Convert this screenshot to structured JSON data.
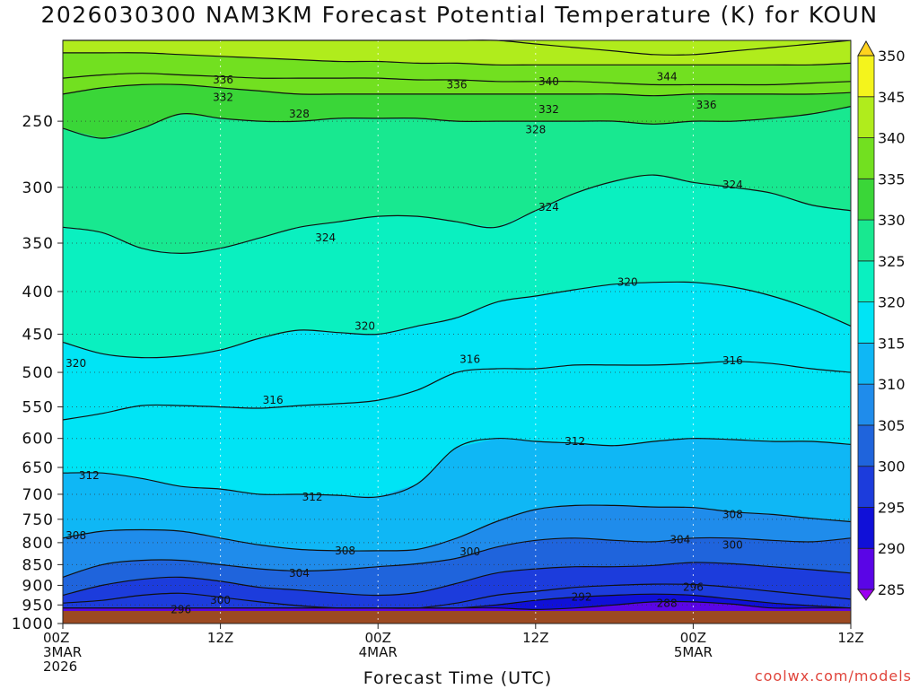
{
  "chart_data": {
    "type": "heatmap",
    "title": "2026030300 NAM3KM Forecast Potential Temperature (K) for KOUN",
    "xlabel": "Forecast Time (UTC)",
    "ylabel": "",
    "x_ticks": [
      {
        "hour": 0,
        "lines": [
          "00Z",
          "3MAR",
          "2026"
        ]
      },
      {
        "hour": 12,
        "lines": [
          "12Z"
        ]
      },
      {
        "hour": 24,
        "lines": [
          "00Z",
          "4MAR"
        ]
      },
      {
        "hour": 36,
        "lines": [
          "12Z"
        ]
      },
      {
        "hour": 48,
        "lines": [
          "00Z",
          "5MAR"
        ]
      },
      {
        "hour": 60,
        "lines": [
          "12Z"
        ]
      }
    ],
    "xlim": [
      0,
      60
    ],
    "y_axis": {
      "ticks": [
        250,
        300,
        350,
        400,
        450,
        500,
        550,
        600,
        650,
        700,
        750,
        800,
        850,
        900,
        950,
        1000
      ],
      "ylim": [
        200,
        1000
      ],
      "scale": "log",
      "inverted": true
    },
    "colorbar": {
      "ticks": [
        285,
        290,
        295,
        300,
        305,
        310,
        315,
        320,
        325,
        330,
        335,
        340,
        345,
        350
      ],
      "colors": [
        "#9b00f0",
        "#5a05e6",
        "#1010d8",
        "#1c3cdc",
        "#1f64dc",
        "#1f8ceb",
        "#0fb7f5",
        "#00e4f5",
        "#0af0c0",
        "#18e890",
        "#3ad638",
        "#72e020",
        "#b0ec1c",
        "#f4f41c",
        "#ffd21e"
      ]
    },
    "x_hours": [
      0,
      3,
      6,
      9,
      12,
      15,
      18,
      21,
      24,
      27,
      30,
      33,
      36,
      39,
      42,
      45,
      48,
      51,
      54,
      57,
      60
    ],
    "levels": [
      {
        "theta": 288,
        "p": [
          958,
          958,
          958,
          958,
          958,
          958,
          958,
          958,
          958,
          958,
          958,
          958,
          962,
          958,
          950,
          942,
          942,
          948,
          958,
          958,
          958
        ]
      },
      {
        "theta": 292,
        "p": [
          958,
          958,
          958,
          958,
          958,
          958,
          958,
          958,
          958,
          958,
          958,
          950,
          938,
          930,
          925,
          922,
          925,
          935,
          945,
          952,
          958
        ]
      },
      {
        "theta": 296,
        "p": [
          945,
          938,
          925,
          920,
          930,
          942,
          952,
          958,
          958,
          958,
          945,
          925,
          915,
          905,
          900,
          897,
          898,
          905,
          915,
          925,
          935
        ]
      },
      {
        "theta": 300,
        "p": [
          925,
          900,
          885,
          880,
          890,
          905,
          912,
          920,
          925,
          918,
          895,
          870,
          860,
          855,
          855,
          852,
          845,
          848,
          855,
          862,
          870
        ]
      },
      {
        "theta": 304,
        "p": [
          880,
          850,
          840,
          840,
          850,
          860,
          865,
          862,
          855,
          848,
          835,
          810,
          795,
          790,
          795,
          798,
          790,
          790,
          795,
          798,
          790
        ]
      },
      {
        "theta": 308,
        "p": [
          790,
          775,
          772,
          775,
          790,
          805,
          815,
          818,
          818,
          815,
          790,
          755,
          730,
          722,
          722,
          725,
          726,
          735,
          740,
          748,
          755
        ]
      },
      {
        "theta": 312,
        "p": [
          660,
          660,
          670,
          685,
          690,
          700,
          700,
          702,
          705,
          680,
          615,
          600,
          605,
          608,
          612,
          605,
          600,
          602,
          605,
          605,
          610
        ]
      },
      {
        "theta": 316,
        "p": [
          570,
          560,
          548,
          548,
          550,
          552,
          548,
          545,
          540,
          525,
          500,
          495,
          495,
          490,
          490,
          490,
          488,
          485,
          488,
          495,
          500
        ]
      },
      {
        "theta": 320,
        "p": [
          460,
          475,
          480,
          478,
          470,
          455,
          445,
          448,
          450,
          440,
          430,
          412,
          405,
          398,
          392,
          390,
          390,
          395,
          405,
          420,
          440
        ]
      },
      {
        "theta": 324,
        "p": [
          335,
          340,
          355,
          360,
          355,
          345,
          335,
          330,
          325,
          325,
          330,
          335,
          320,
          305,
          295,
          290,
          296,
          300,
          305,
          315,
          320
        ]
      },
      {
        "theta": 328,
        "p": [
          255,
          262,
          255,
          245,
          248,
          250,
          250,
          248,
          248,
          248,
          250,
          250,
          250,
          250,
          250,
          252,
          250,
          250,
          248,
          245,
          240
        ]
      },
      {
        "theta": 332,
        "p": [
          232,
          228,
          226,
          226,
          228,
          230,
          232,
          232,
          232,
          232,
          232,
          232,
          232,
          232,
          232,
          233,
          232,
          232,
          232,
          232,
          231
        ]
      },
      {
        "theta": 336,
        "p": [
          222,
          220,
          219,
          220,
          221,
          222,
          222,
          222,
          222,
          223,
          223,
          224,
          224,
          224,
          225,
          226,
          226,
          226,
          226,
          225,
          224
        ]
      },
      {
        "theta": 340,
        "p": [
          207,
          207,
          207,
          208,
          209,
          210,
          211,
          212,
          212,
          213,
          213,
          214,
          214,
          214,
          214,
          214,
          214,
          214,
          214,
          214,
          213
        ]
      },
      {
        "theta": 344,
        "p": [
          200,
          200,
          200,
          200,
          200,
          200,
          200,
          200,
          200,
          200,
          200,
          200,
          202,
          204,
          206,
          208,
          208,
          206,
          204,
          202,
          200
        ]
      }
    ],
    "contour_labels": [
      {
        "text": "336",
        "hour": 12.2,
        "p": 223
      },
      {
        "text": "332",
        "hour": 12.2,
        "p": 234
      },
      {
        "text": "328",
        "hour": 18.0,
        "p": 245
      },
      {
        "text": "336",
        "hour": 30.0,
        "p": 226
      },
      {
        "text": "340",
        "hour": 37.0,
        "p": 224
      },
      {
        "text": "344",
        "hour": 46.0,
        "p": 221
      },
      {
        "text": "332",
        "hour": 37.0,
        "p": 242
      },
      {
        "text": "336",
        "hour": 49.0,
        "p": 239
      },
      {
        "text": "328",
        "hour": 36.0,
        "p": 256
      },
      {
        "text": "324",
        "hour": 51.0,
        "p": 298
      },
      {
        "text": "324",
        "hour": 37.0,
        "p": 317
      },
      {
        "text": "324",
        "hour": 20.0,
        "p": 345
      },
      {
        "text": "320",
        "hour": 43.0,
        "p": 390
      },
      {
        "text": "320",
        "hour": 23.0,
        "p": 440
      },
      {
        "text": "320",
        "hour": 1.0,
        "p": 488
      },
      {
        "text": "316",
        "hour": 31.0,
        "p": 482
      },
      {
        "text": "316",
        "hour": 51.0,
        "p": 484
      },
      {
        "text": "316",
        "hour": 16.0,
        "p": 540
      },
      {
        "text": "312",
        "hour": 39.0,
        "p": 605
      },
      {
        "text": "312",
        "hour": 2.0,
        "p": 665
      },
      {
        "text": "312",
        "hour": 19.0,
        "p": 705
      },
      {
        "text": "308",
        "hour": 51.0,
        "p": 740
      },
      {
        "text": "308",
        "hour": 1.0,
        "p": 785
      },
      {
        "text": "308",
        "hour": 21.5,
        "p": 818
      },
      {
        "text": "304",
        "hour": 18.0,
        "p": 870
      },
      {
        "text": "304",
        "hour": 47.0,
        "p": 793
      },
      {
        "text": "300",
        "hour": 31.0,
        "p": 820
      },
      {
        "text": "300",
        "hour": 51.0,
        "p": 805
      },
      {
        "text": "300",
        "hour": 12.0,
        "p": 938
      },
      {
        "text": "296",
        "hour": 9.0,
        "p": 962
      },
      {
        "text": "296",
        "hour": 48.0,
        "p": 905
      },
      {
        "text": "292",
        "hour": 39.5,
        "p": 930
      },
      {
        "text": "288",
        "hour": 46.0,
        "p": 946
      }
    ],
    "surface_pressure": 966,
    "grid": "dotted"
  },
  "credit": "coolwx.com/models"
}
